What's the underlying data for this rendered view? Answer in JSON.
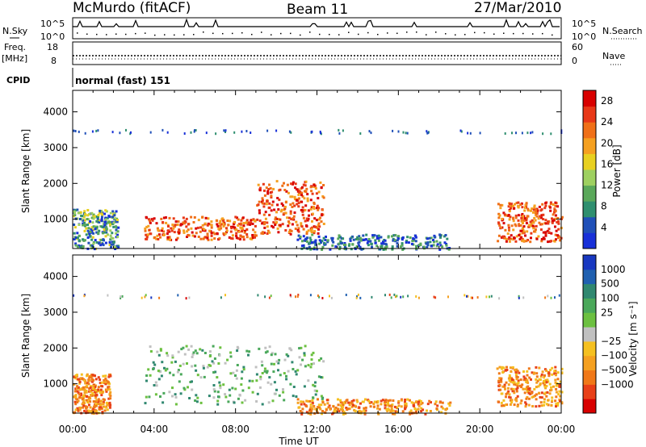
{
  "header": {
    "station": "McMurdo (fitACF)",
    "beam": "Beam 11",
    "date": "27/Mar/2010"
  },
  "status_panels": {
    "nsky_label": "N.Sky",
    "nsky_ticks": [
      "10^5",
      "10^0"
    ],
    "nsearch_label": "N.Search",
    "nsearch_ticks": [
      "10^5",
      "10^0"
    ],
    "freq_label_1": "Freq.",
    "freq_label_2": "[MHz]",
    "freq_ticks": [
      "18",
      "8"
    ],
    "nave_label": "Nave",
    "nave_ticks": [
      "60",
      "0"
    ],
    "cpid_label": "CPID",
    "cpid_value": "normal (fast) 151"
  },
  "chart_data": [
    {
      "type": "heatmap",
      "title": "",
      "xlabel": "Time UT",
      "ylabel": "Slant Range [km]",
      "x_ticks": [
        "00:00",
        "04:00",
        "08:00",
        "12:00",
        "16:00",
        "20:00",
        "00:00"
      ],
      "y_ticks": [
        "1000",
        "2000",
        "3000",
        "4000"
      ],
      "xlim_hours": [
        0,
        24
      ],
      "ylim_km": [
        180,
        4600
      ],
      "colorbar": {
        "label": "Power [dB]",
        "ticks": [
          "4",
          "8",
          "12",
          "16",
          "20",
          "24",
          "28"
        ],
        "range": [
          0,
          30
        ],
        "colors": [
          "#1830d8",
          "#2050b8",
          "#2f8f6f",
          "#5aa85a",
          "#9ed060",
          "#e8d020",
          "#f5a020",
          "#f07018",
          "#e83818",
          "#d80000"
        ]
      },
      "regions": [
        {
          "t0": 0.0,
          "t1": 2.2,
          "r0": 200,
          "r1": 1300,
          "level": "medium"
        },
        {
          "t0": 3.5,
          "t1": 9.0,
          "r0": 450,
          "r1": 1100,
          "level": "high"
        },
        {
          "t0": 9.0,
          "t1": 12.3,
          "r0": 600,
          "r1": 2100,
          "level": "high"
        },
        {
          "t0": 11.0,
          "t1": 18.5,
          "r0": 180,
          "r1": 600,
          "level": "low"
        },
        {
          "t0": 20.8,
          "t1": 24.0,
          "r0": 400,
          "r1": 1500,
          "level": "high"
        },
        {
          "t0": 0.0,
          "t1": 24.0,
          "r0": 3420,
          "r1": 3520,
          "level": "sparse"
        }
      ]
    },
    {
      "type": "heatmap",
      "title": "",
      "xlabel": "Time UT",
      "ylabel": "Slant Range [km]",
      "x_ticks": [
        "00:00",
        "04:00",
        "08:00",
        "12:00",
        "16:00",
        "20:00",
        "00:00"
      ],
      "y_ticks": [
        "1000",
        "2000",
        "3000",
        "4000"
      ],
      "xlim_hours": [
        0,
        24
      ],
      "ylim_km": [
        180,
        4600
      ],
      "colorbar": {
        "label": "Velocity [m s⁻¹]",
        "ticks": [
          "1000",
          "500",
          "100",
          "25",
          "−25",
          "−100",
          "−500",
          "−1000"
        ],
        "range": [
          -1000,
          1000
        ],
        "colors": [
          "#1838c0",
          "#2060b0",
          "#308870",
          "#4aa85a",
          "#6cc040",
          "#c0c0c0",
          "#f5c020",
          "#f5a020",
          "#f07818",
          "#e84018",
          "#d80000"
        ]
      },
      "regions": [
        {
          "t0": 0.0,
          "t1": 1.8,
          "r0": 200,
          "r1": 1300,
          "level": "orange"
        },
        {
          "t0": 3.5,
          "t1": 12.3,
          "r0": 450,
          "r1": 2100,
          "level": "green"
        },
        {
          "t0": 11.0,
          "t1": 18.5,
          "r0": 180,
          "r1": 600,
          "level": "orange"
        },
        {
          "t0": 20.8,
          "t1": 24.0,
          "r0": 400,
          "r1": 1500,
          "level": "orange"
        },
        {
          "t0": 0.0,
          "t1": 24.0,
          "r0": 3420,
          "r1": 3520,
          "level": "sparse"
        }
      ]
    }
  ]
}
